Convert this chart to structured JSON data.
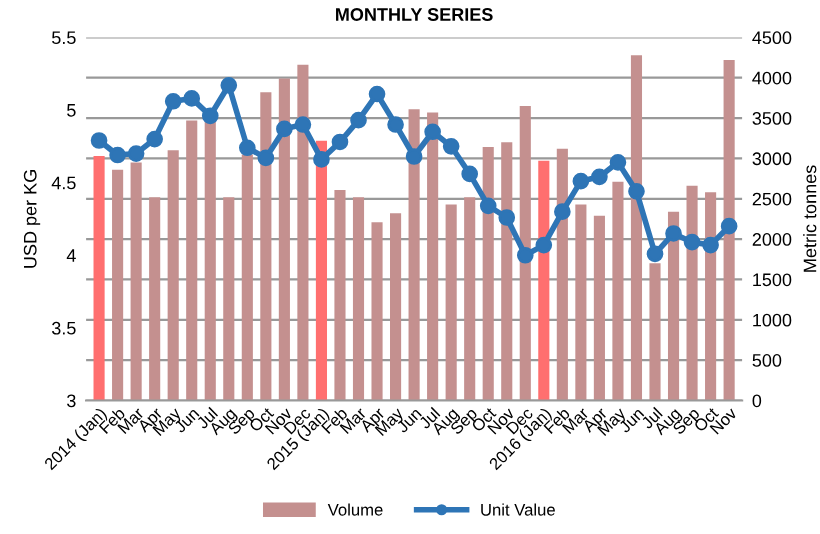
{
  "chart_data": {
    "type": "bar",
    "title": "MONTHLY SERIES",
    "ylabel": "USD per KG",
    "y2label": "Metric tonnes",
    "categories": [
      "2014 (Jan)",
      "Feb",
      "Mar",
      "Apr",
      "May",
      "Jun",
      "Jul",
      "Aug",
      "Sep",
      "Oct",
      "Nov",
      "Dec",
      "2015 (Jan)",
      "Feb",
      "Mar",
      "Apr",
      "May",
      "Jun",
      "Jul",
      "Aug",
      "Sep",
      "Oct",
      "Nov",
      "Dec",
      "2016 (Jan)",
      "Feb",
      "Mar",
      "Apr",
      "May",
      "Jun",
      "Jul",
      "Aug",
      "Sep",
      "Oct",
      "Nov"
    ],
    "series": [
      {
        "name": "Volume",
        "axis": "y2",
        "color": "#c4908f",
        "colors": [
          "#ff6f6f",
          "#c4908f",
          "#c4908f",
          "#c4908f",
          "#c4908f",
          "#c4908f",
          "#c4908f",
          "#c4908f",
          "#c4908f",
          "#c4908f",
          "#c4908f",
          "#c4908f",
          "#ff6f6f",
          "#c4908f",
          "#c4908f",
          "#c4908f",
          "#c4908f",
          "#c4908f",
          "#c4908f",
          "#c4908f",
          "#c4908f",
          "#c4908f",
          "#c4908f",
          "#c4908f",
          "#ff6f6f",
          "#c4908f",
          "#c4908f",
          "#c4908f",
          "#c4908f",
          "#c4908f",
          "#c4908f",
          "#c4908f",
          "#c4908f",
          "#c4908f",
          "#c4908f"
        ],
        "values": [
          3030,
          2860,
          2950,
          2520,
          3100,
          3470,
          3450,
          2520,
          3050,
          3820,
          3990,
          4160,
          3220,
          2610,
          2520,
          2210,
          2320,
          3610,
          3570,
          2430,
          2520,
          3140,
          3200,
          3650,
          2970,
          3120,
          2430,
          2290,
          2710,
          4280,
          1700,
          2340,
          2660,
          2580,
          4220
        ]
      },
      {
        "name": "Unit Value",
        "type": "line",
        "axis": "y",
        "color": "#2e75b6",
        "marker": "circle",
        "line_style": "solid",
        "values": [
          4.79,
          4.69,
          4.7,
          4.8,
          5.06,
          5.08,
          4.96,
          5.17,
          4.74,
          4.67,
          4.87,
          4.9,
          4.66,
          4.78,
          4.93,
          5.11,
          4.9,
          4.68,
          4.85,
          4.75,
          4.56,
          4.34,
          4.26,
          4.0,
          4.07,
          4.3,
          4.51,
          4.54,
          4.64,
          4.44,
          4.01,
          4.15,
          4.09,
          4.07,
          4.2
        ]
      }
    ],
    "ylim": [
      3,
      5.5
    ],
    "yticks": [
      3,
      3.5,
      4,
      4.5,
      5,
      5.5
    ],
    "y2lim": [
      0,
      4500
    ],
    "y2ticks": [
      0,
      500,
      1000,
      1500,
      2000,
      2500,
      3000,
      3500,
      4000,
      4500
    ],
    "grid": "y",
    "legend": "bottom"
  }
}
